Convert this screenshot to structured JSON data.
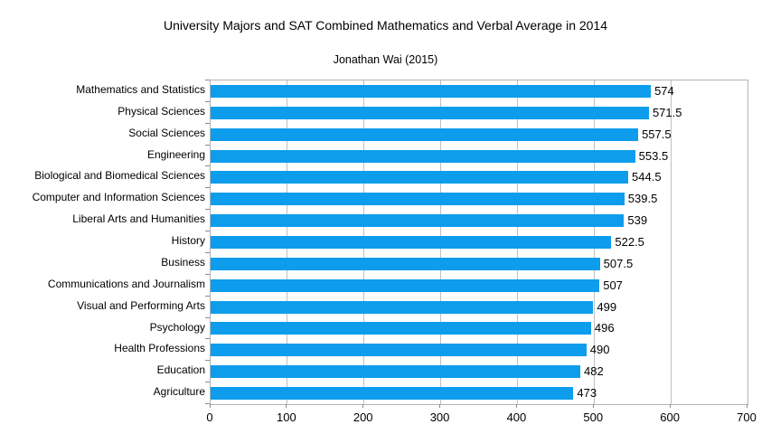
{
  "colors": {
    "bar": "#0d9dec",
    "gridline": "#c0c0c0",
    "plot_border": "#b3b3b3",
    "axis_tick": "#8c8c8c",
    "text": "#000000",
    "background": "#ffffff"
  },
  "chart_data": {
    "type": "bar",
    "orientation": "horizontal",
    "title": "University Majors and SAT Combined Mathematics and Verbal Average in 2014",
    "subtitle": "Jonathan Wai (2015)",
    "xlabel": "",
    "ylabel": "",
    "xlim": [
      0,
      700
    ],
    "xticks": [
      0,
      100,
      200,
      300,
      400,
      500,
      600,
      700
    ],
    "grid": "vertical",
    "legend": "none",
    "categories": [
      "Mathematics and Statistics",
      "Physical Sciences",
      "Social Sciences",
      "Engineering",
      "Biological and Biomedical Sciences",
      "Computer and Information Sciences",
      "Liberal Arts and Humanities",
      "History",
      "Business",
      "Communications and Journalism",
      "Visual and Performing Arts",
      "Psychology",
      "Health Professions",
      "Education",
      "Agriculture"
    ],
    "values": [
      574,
      571.5,
      557.5,
      553.5,
      544.5,
      539.5,
      539,
      522.5,
      507.5,
      507,
      499,
      496,
      490,
      482,
      473
    ],
    "value_labels": [
      "574",
      "571.5",
      "557.5",
      "553.5",
      "544.5",
      "539.5",
      "539",
      "522.5",
      "507.5",
      "507",
      "499",
      "496",
      "490",
      "482",
      "473"
    ]
  }
}
